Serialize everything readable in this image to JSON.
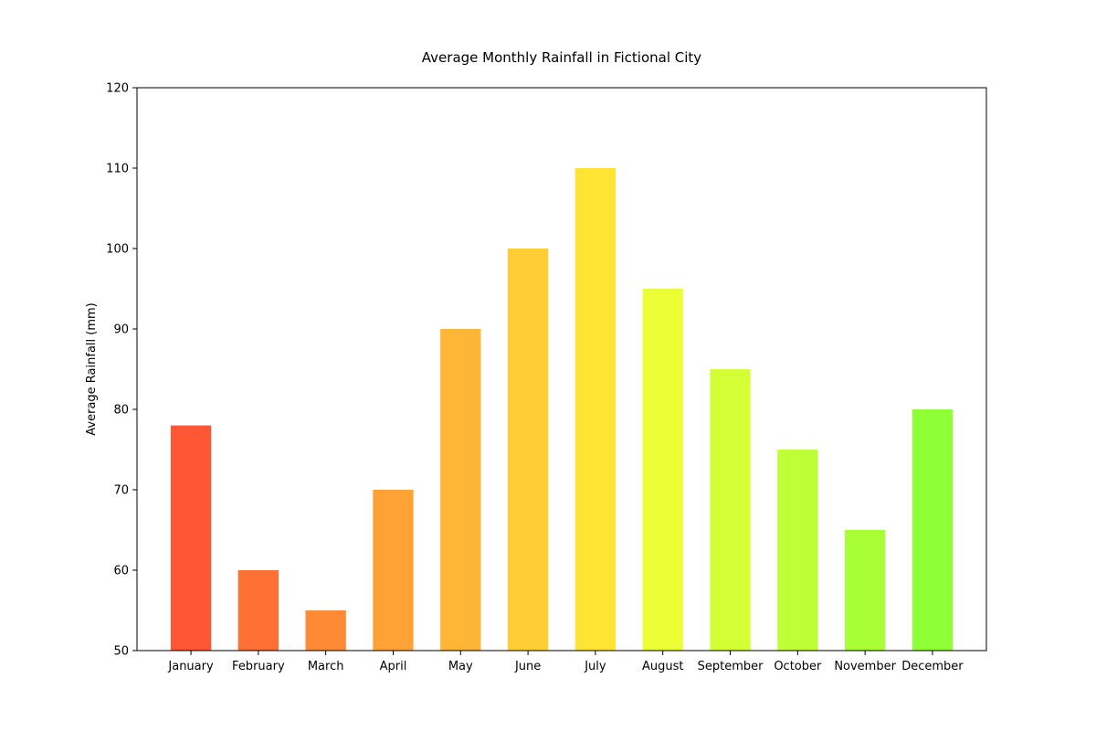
{
  "chart_data": {
    "type": "bar",
    "title": "Average Monthly Rainfall in Fictional City",
    "xlabel": "",
    "ylabel": "Average Rainfall (mm)",
    "ylim": [
      50,
      120
    ],
    "yticks": [
      50,
      60,
      70,
      80,
      90,
      100,
      110,
      120
    ],
    "ytick_labels": [
      "50",
      "60",
      "70",
      "80",
      "90",
      "100",
      "110",
      "120"
    ],
    "categories": [
      "January",
      "February",
      "March",
      "April",
      "May",
      "June",
      "July",
      "August",
      "September",
      "October",
      "November",
      "December"
    ],
    "values": [
      78,
      60,
      55,
      70,
      90,
      100,
      110,
      95,
      85,
      75,
      65,
      80
    ],
    "colors": [
      "#ff5733",
      "#ff7035",
      "#ff8a36",
      "#ffa236",
      "#ffb636",
      "#ffcd36",
      "#ffe436",
      "#ecff36",
      "#d4ff36",
      "#bfff36",
      "#a8ff36",
      "#8fff36"
    ],
    "grid": false,
    "legend": "none"
  }
}
